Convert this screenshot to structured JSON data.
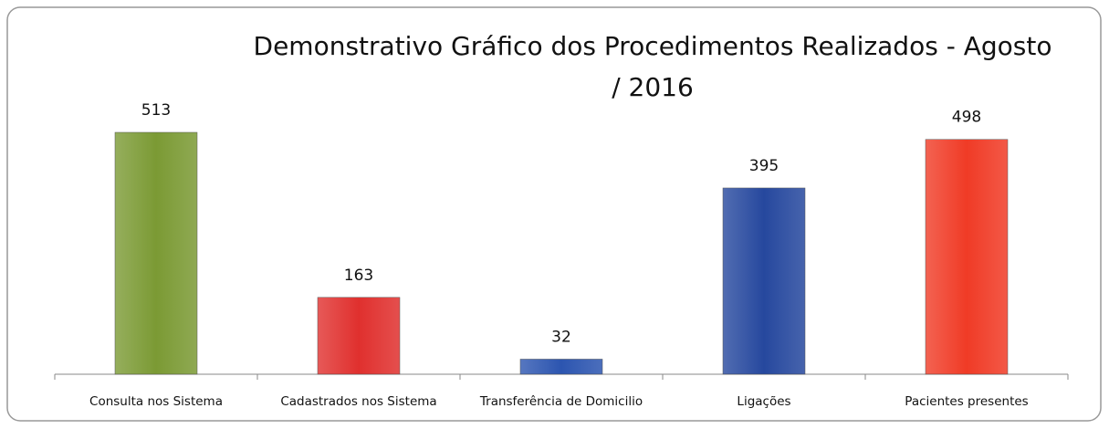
{
  "chart_data": {
    "type": "bar",
    "title": "Demonstrativo Gráfico dos Procedimentos Realizados - Agosto / 2016",
    "categories": [
      "Consulta nos Sistema",
      "Cadastrados nos Sistema",
      "Transferência de Domicilio",
      "Ligações",
      "Pacientes presentes"
    ],
    "values": [
      513,
      163,
      32,
      395,
      498
    ],
    "colors": [
      "#7b9a34",
      "#e0302e",
      "#2c55b0",
      "#26489e",
      "#f03b26"
    ]
  }
}
